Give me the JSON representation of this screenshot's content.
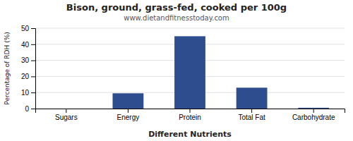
{
  "chart_data": {
    "type": "bar",
    "title": "Bison, ground, grass-fed, cooked per 100g",
    "subtitle": "www.dietandfitnesstoday.com",
    "xlabel": "Different Nutrients",
    "ylabel": "Percentage of RDH (%)",
    "categories": [
      "Sugars",
      "Energy",
      "Protein",
      "Total Fat",
      "Carbohydrate"
    ],
    "values": [
      0,
      9.5,
      45,
      13,
      0.5
    ],
    "color": "#2d4d8e",
    "ylim": [
      0,
      50
    ],
    "yticks": [
      0,
      10,
      20,
      30,
      40,
      50
    ],
    "grid": true
  }
}
